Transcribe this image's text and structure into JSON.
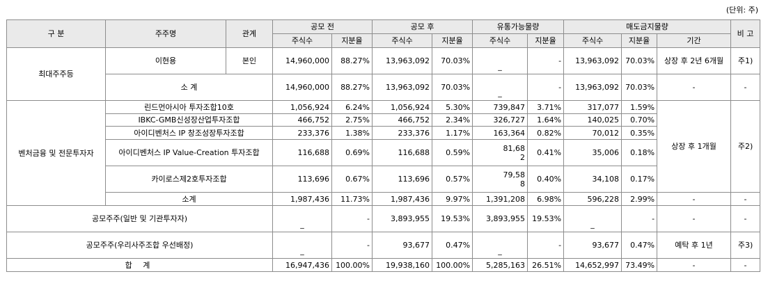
{
  "unit_label": "(단위: 주)",
  "headers": {
    "category": "구 분",
    "shareholder": "주주명",
    "relation": "관계",
    "before_ipo": "공모 전",
    "after_ipo": "공모 후",
    "tradable": "유통가능물량",
    "lockup": "매도금지물량",
    "remarks": "비 고",
    "shares": "주식수",
    "ratio": "지분율",
    "period": "기간"
  },
  "rows": {
    "largest_group": "최대주주등",
    "lee": {
      "name": "이현용",
      "relation": "본인",
      "before_shares": "14,960,000",
      "before_ratio": "88.27%",
      "after_shares": "13,963,092",
      "after_ratio": "70.03%",
      "trade_shares": "_",
      "trade_ratio": "-",
      "lock_shares": "13,963,092",
      "lock_ratio": "70.03%",
      "period": "상장 후 2년 6개월",
      "note": "주1)"
    },
    "sub1": {
      "label": "소 계",
      "before_shares": "14,960,000",
      "before_ratio": "88.27%",
      "after_shares": "13,963,092",
      "after_ratio": "70.03%",
      "trade_shares": "_",
      "trade_ratio": "-",
      "lock_shares": "13,963,092",
      "lock_ratio": "70.03%",
      "period": "-",
      "note": "-"
    },
    "venture_group": "벤처금융 및 전문투자자",
    "venture_period": "상장 후 1개월",
    "venture_note": "주2)",
    "v1": {
      "name": "린드먼아시아 투자조합10호",
      "before_shares": "1,056,924",
      "before_ratio": "6.24%",
      "after_shares": "1,056,924",
      "after_ratio": "5.30%",
      "trade_shares": "739,847",
      "trade_ratio": "3.71%",
      "lock_shares": "317,077",
      "lock_ratio": "1.59%"
    },
    "v2": {
      "name": "IBKC-GMB신성장산업투자조합",
      "before_shares": "466,752",
      "before_ratio": "2.75%",
      "after_shares": "466,752",
      "after_ratio": "2.34%",
      "trade_shares": "326,727",
      "trade_ratio": "1.64%",
      "lock_shares": "140,025",
      "lock_ratio": "0.70%"
    },
    "v3": {
      "name": "아이디벤처스 IP 창조성장투자조합",
      "before_shares": "233,376",
      "before_ratio": "1.38%",
      "after_shares": "233,376",
      "after_ratio": "1.17%",
      "trade_shares": "163,364",
      "trade_ratio": "0.82%",
      "lock_shares": "70,012",
      "lock_ratio": "0.35%"
    },
    "v4": {
      "name": "아이디벤처스 IP Value-Creation 투자조합",
      "before_shares": "116,688",
      "before_ratio": "0.69%",
      "after_shares": "116,688",
      "after_ratio": "0.59%",
      "trade_shares_line1": "81,68",
      "trade_shares_line2": "2",
      "trade_ratio": "0.41%",
      "lock_shares": "35,006",
      "lock_ratio": "0.18%"
    },
    "v5": {
      "name": "카이로스제2호투자조합",
      "before_shares": "113,696",
      "before_ratio": "0.67%",
      "after_shares": "113,696",
      "after_ratio": "0.57%",
      "trade_shares_line1": "79,58",
      "trade_shares_line2": "8",
      "trade_ratio": "0.40%",
      "lock_shares": "34,108",
      "lock_ratio": "0.17%"
    },
    "sub2": {
      "label": "소계",
      "before_shares": "1,987,436",
      "before_ratio": "11.73%",
      "after_shares": "1,987,436",
      "after_ratio": "9.97%",
      "trade_shares": "1,391,208",
      "trade_ratio": "6.98%",
      "lock_shares": "596,228",
      "lock_ratio": "2.99%",
      "period": "-",
      "note": "-"
    },
    "public": {
      "label": "공모주주(일반 및 기관투자자)",
      "before_shares": "_",
      "before_ratio": "-",
      "after_shares": "3,893,955",
      "after_ratio": "19.53%",
      "trade_shares": "3,893,955",
      "trade_ratio": "19.53%",
      "lock_shares": "_",
      "lock_ratio": "-",
      "period": "-",
      "note": "-"
    },
    "esop": {
      "label": "공모주주(우리사주조합 우선배정)",
      "before_shares": "_",
      "before_ratio": "-",
      "after_shares": "93,677",
      "after_ratio": "0.47%",
      "trade_shares": "_",
      "trade_ratio": "-",
      "lock_shares": "93,677",
      "lock_ratio": "0.47%",
      "period": "예탁 후 1년",
      "note": "주3)"
    },
    "total": {
      "label": "합 계",
      "before_shares": "16,947,436",
      "before_ratio": "100.00%",
      "after_shares": "19,938,160",
      "after_ratio": "100.00%",
      "trade_shares": "5,285,163",
      "trade_ratio": "26.51%",
      "lock_shares": "14,652,997",
      "lock_ratio": "73.49%",
      "period": "-",
      "note": "-"
    }
  }
}
